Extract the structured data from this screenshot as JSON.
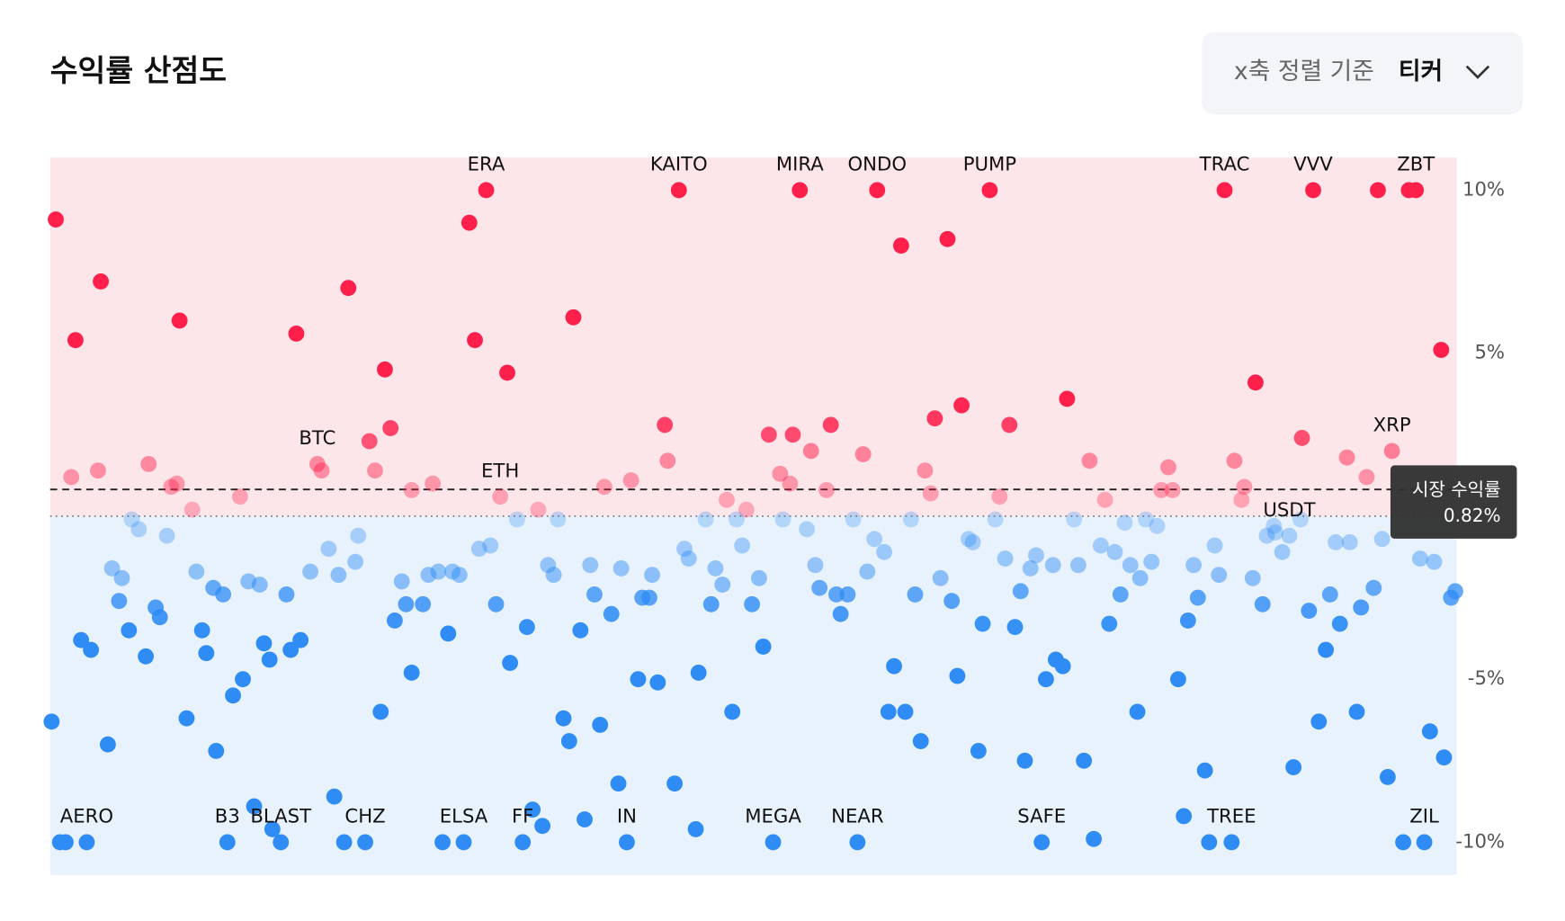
{
  "title": "수익률 산점도",
  "sort_control": {
    "label": "x축 정렬 기준",
    "value": "티커"
  },
  "chart_data": {
    "type": "scatter",
    "xlim": [
      0,
      100
    ],
    "ylim": [
      -11,
      11
    ],
    "yticks": [
      {
        "value": 10,
        "label": "10%"
      },
      {
        "value": 5,
        "label": "5%"
      },
      {
        "value": -5,
        "label": "-5%"
      },
      {
        "value": -10,
        "label": "-10%"
      }
    ],
    "market_return": {
      "label": "시장 수익률",
      "value": 0.82,
      "value_label": "0.82%"
    },
    "positive_color": "#ff1f4b",
    "negative_color": "#2f8cf5",
    "positive_area_color": "#fde6ea",
    "negative_area_color": "#e8f2fd",
    "points": [
      {
        "x": 0.4,
        "y": 9.1
      },
      {
        "x": 1.8,
        "y": 5.4
      },
      {
        "x": 3.6,
        "y": 7.2
      },
      {
        "x": 9.2,
        "y": 6.0
      },
      {
        "x": 17.5,
        "y": 5.6
      },
      {
        "x": 21.2,
        "y": 7.0
      },
      {
        "x": 23.8,
        "y": 4.5
      },
      {
        "x": 24.2,
        "y": 2.7
      },
      {
        "x": 22.7,
        "y": 2.3
      },
      {
        "x": 29.8,
        "y": 9.0
      },
      {
        "x": 30.2,
        "y": 5.4
      },
      {
        "x": 31.0,
        "y": 10,
        "label": "ERA"
      },
      {
        "x": 32.5,
        "y": 4.4
      },
      {
        "x": 37.2,
        "y": 6.1
      },
      {
        "x": 44.7,
        "y": 10,
        "label": "KAITO"
      },
      {
        "x": 43.7,
        "y": 2.8
      },
      {
        "x": 53.3,
        "y": 10,
        "label": "MIRA"
      },
      {
        "x": 58.8,
        "y": 10,
        "label": "ONDO"
      },
      {
        "x": 60.5,
        "y": 8.3
      },
      {
        "x": 63.8,
        "y": 8.5
      },
      {
        "x": 66.8,
        "y": 10,
        "label": "PUMP"
      },
      {
        "x": 62.9,
        "y": 3.0
      },
      {
        "x": 64.8,
        "y": 3.4
      },
      {
        "x": 68.2,
        "y": 2.8
      },
      {
        "x": 72.3,
        "y": 3.6
      },
      {
        "x": 83.5,
        "y": 10,
        "label": "TRAC"
      },
      {
        "x": 85.7,
        "y": 4.1
      },
      {
        "x": 89.8,
        "y": 10,
        "label": "VVV"
      },
      {
        "x": 89.0,
        "y": 2.4
      },
      {
        "x": 94.4,
        "y": 10
      },
      {
        "x": 96.6,
        "y": 10
      },
      {
        "x": 97.1,
        "y": 10,
        "label": "ZBT"
      },
      {
        "x": 98.9,
        "y": 5.1
      },
      {
        "x": 51.1,
        "y": 2.5
      },
      {
        "x": 52.8,
        "y": 2.5
      },
      {
        "x": 54.1,
        "y": 2.0
      },
      {
        "x": 55.5,
        "y": 2.8
      },
      {
        "x": 1.5,
        "y": 1.2
      },
      {
        "x": 3.4,
        "y": 1.4
      },
      {
        "x": 7.0,
        "y": 1.6
      },
      {
        "x": 8.6,
        "y": 0.9
      },
      {
        "x": 9.0,
        "y": 1.0
      },
      {
        "x": 10.1,
        "y": 0.2
      },
      {
        "x": 13.5,
        "y": 0.6
      },
      {
        "x": 19.0,
        "y": 1.6,
        "label": "BTC"
      },
      {
        "x": 19.3,
        "y": 1.4
      },
      {
        "x": 23.1,
        "y": 1.4
      },
      {
        "x": 25.7,
        "y": 0.8
      },
      {
        "x": 27.2,
        "y": 1.0
      },
      {
        "x": 32.0,
        "y": 0.6,
        "label": "ETH"
      },
      {
        "x": 34.7,
        "y": 0.2
      },
      {
        "x": 39.4,
        "y": 0.9
      },
      {
        "x": 41.3,
        "y": 1.1
      },
      {
        "x": 43.9,
        "y": 1.7
      },
      {
        "x": 48.1,
        "y": 0.5
      },
      {
        "x": 49.5,
        "y": 0.2
      },
      {
        "x": 51.9,
        "y": 1.3
      },
      {
        "x": 52.6,
        "y": 1.0
      },
      {
        "x": 55.2,
        "y": 0.8
      },
      {
        "x": 57.8,
        "y": 1.9
      },
      {
        "x": 62.2,
        "y": 1.4
      },
      {
        "x": 62.6,
        "y": 0.7
      },
      {
        "x": 67.5,
        "y": 0.6
      },
      {
        "x": 73.9,
        "y": 1.7
      },
      {
        "x": 75.0,
        "y": 0.5
      },
      {
        "x": 79.0,
        "y": 0.8
      },
      {
        "x": 79.5,
        "y": 1.5
      },
      {
        "x": 79.8,
        "y": 0.8
      },
      {
        "x": 84.2,
        "y": 1.7
      },
      {
        "x": 84.7,
        "y": 0.5
      },
      {
        "x": 84.9,
        "y": 0.9
      },
      {
        "x": 92.2,
        "y": 1.8
      },
      {
        "x": 93.6,
        "y": 1.2
      },
      {
        "x": 95.4,
        "y": 2.0,
        "label": "XRP"
      },
      {
        "x": 5.8,
        "y": -0.1
      },
      {
        "x": 6.3,
        "y": -0.4
      },
      {
        "x": 8.3,
        "y": -0.6
      },
      {
        "x": 4.4,
        "y": -1.6
      },
      {
        "x": 5.1,
        "y": -1.9
      },
      {
        "x": 10.4,
        "y": -1.7
      },
      {
        "x": 19.8,
        "y": -1.0
      },
      {
        "x": 18.5,
        "y": -1.7
      },
      {
        "x": 20.5,
        "y": -1.8
      },
      {
        "x": 21.7,
        "y": -1.4
      },
      {
        "x": 21.9,
        "y": -0.6
      },
      {
        "x": 25.0,
        "y": -2.0
      },
      {
        "x": 26.9,
        "y": -1.8
      },
      {
        "x": 27.6,
        "y": -1.7
      },
      {
        "x": 28.6,
        "y": -1.7
      },
      {
        "x": 29.1,
        "y": -1.8
      },
      {
        "x": 30.5,
        "y": -1.0
      },
      {
        "x": 31.3,
        "y": -0.9
      },
      {
        "x": 33.2,
        "y": -0.1
      },
      {
        "x": 36.1,
        "y": -0.1
      },
      {
        "x": 35.4,
        "y": -1.5
      },
      {
        "x": 35.8,
        "y": -1.8
      },
      {
        "x": 38.4,
        "y": -1.5
      },
      {
        "x": 40.6,
        "y": -1.6
      },
      {
        "x": 42.8,
        "y": -1.8
      },
      {
        "x": 45.1,
        "y": -1.0
      },
      {
        "x": 45.4,
        "y": -1.3
      },
      {
        "x": 46.6,
        "y": -0.1
      },
      {
        "x": 47.3,
        "y": -1.6
      },
      {
        "x": 48.8,
        "y": -0.1
      },
      {
        "x": 49.2,
        "y": -0.9
      },
      {
        "x": 50.4,
        "y": -1.9
      },
      {
        "x": 52.1,
        "y": -0.1
      },
      {
        "x": 53.8,
        "y": -0.4
      },
      {
        "x": 54.4,
        "y": -1.5
      },
      {
        "x": 57.1,
        "y": -0.1
      },
      {
        "x": 58.1,
        "y": -1.7
      },
      {
        "x": 58.6,
        "y": -0.7
      },
      {
        "x": 59.3,
        "y": -1.1
      },
      {
        "x": 61.2,
        "y": -0.1
      },
      {
        "x": 63.3,
        "y": -1.9
      },
      {
        "x": 65.3,
        "y": -0.7
      },
      {
        "x": 65.6,
        "y": -0.8
      },
      {
        "x": 67.2,
        "y": -0.1
      },
      {
        "x": 67.9,
        "y": -1.3
      },
      {
        "x": 69.7,
        "y": -1.6
      },
      {
        "x": 70.1,
        "y": -1.2
      },
      {
        "x": 71.3,
        "y": -1.5
      },
      {
        "x": 72.8,
        "y": -0.1
      },
      {
        "x": 73.1,
        "y": -1.5
      },
      {
        "x": 74.7,
        "y": -0.9
      },
      {
        "x": 75.7,
        "y": -1.1
      },
      {
        "x": 76.4,
        "y": -0.2
      },
      {
        "x": 76.8,
        "y": -1.5
      },
      {
        "x": 77.5,
        "y": -1.9
      },
      {
        "x": 77.9,
        "y": -0.1
      },
      {
        "x": 78.3,
        "y": -1.4
      },
      {
        "x": 78.7,
        "y": -0.3
      },
      {
        "x": 81.3,
        "y": -1.5
      },
      {
        "x": 82.8,
        "y": -0.9
      },
      {
        "x": 83.1,
        "y": -1.8
      },
      {
        "x": 85.5,
        "y": -1.9
      },
      {
        "x": 86.5,
        "y": -0.6
      },
      {
        "x": 87.0,
        "y": -0.3
      },
      {
        "x": 87.1,
        "y": -0.5
      },
      {
        "x": 88.1,
        "y": -0.6,
        "label": "USDT"
      },
      {
        "x": 87.6,
        "y": -1.1
      },
      {
        "x": 88.9,
        "y": -0.1
      },
      {
        "x": 91.4,
        "y": -0.8
      },
      {
        "x": 92.4,
        "y": -0.8
      },
      {
        "x": 94.7,
        "y": -0.7
      },
      {
        "x": 97.4,
        "y": -1.3
      },
      {
        "x": 98.4,
        "y": -1.4
      },
      {
        "x": 0.1,
        "y": -6.3
      },
      {
        "x": 2.2,
        "y": -3.8
      },
      {
        "x": 2.9,
        "y": -4.1
      },
      {
        "x": 4.1,
        "y": -7.0
      },
      {
        "x": 4.9,
        "y": -2.6
      },
      {
        "x": 5.6,
        "y": -3.5
      },
      {
        "x": 6.8,
        "y": -4.3
      },
      {
        "x": 7.5,
        "y": -2.8
      },
      {
        "x": 7.8,
        "y": -3.1
      },
      {
        "x": 9.7,
        "y": -6.2
      },
      {
        "x": 10.8,
        "y": -3.5
      },
      {
        "x": 11.1,
        "y": -4.2
      },
      {
        "x": 11.6,
        "y": -2.2
      },
      {
        "x": 11.8,
        "y": -7.2
      },
      {
        "x": 12.3,
        "y": -2.4
      },
      {
        "x": 13.0,
        "y": -5.5
      },
      {
        "x": 13.7,
        "y": -5.0
      },
      {
        "x": 14.1,
        "y": -2.0
      },
      {
        "x": 14.9,
        "y": -2.1
      },
      {
        "x": 15.2,
        "y": -3.9
      },
      {
        "x": 15.6,
        "y": -4.4
      },
      {
        "x": 16.8,
        "y": -2.4
      },
      {
        "x": 17.1,
        "y": -4.1
      },
      {
        "x": 17.8,
        "y": -3.8
      },
      {
        "x": 14.5,
        "y": -8.9
      },
      {
        "x": 15.8,
        "y": -9.6
      },
      {
        "x": 20.2,
        "y": -8.6
      },
      {
        "x": 23.5,
        "y": -6.0
      },
      {
        "x": 24.5,
        "y": -3.2
      },
      {
        "x": 25.3,
        "y": -2.7
      },
      {
        "x": 26.5,
        "y": -2.7
      },
      {
        "x": 25.7,
        "y": -4.8
      },
      {
        "x": 28.3,
        "y": -3.6
      },
      {
        "x": 31.7,
        "y": -2.7
      },
      {
        "x": 32.7,
        "y": -4.5
      },
      {
        "x": 33.9,
        "y": -3.4
      },
      {
        "x": 34.3,
        "y": -9.0
      },
      {
        "x": 35.0,
        "y": -9.5
      },
      {
        "x": 36.5,
        "y": -6.2
      },
      {
        "x": 36.9,
        "y": -6.9
      },
      {
        "x": 37.7,
        "y": -3.5
      },
      {
        "x": 38.0,
        "y": -9.3
      },
      {
        "x": 38.7,
        "y": -2.4
      },
      {
        "x": 39.1,
        "y": -6.4
      },
      {
        "x": 39.9,
        "y": -3.0
      },
      {
        "x": 40.4,
        "y": -8.2
      },
      {
        "x": 41.8,
        "y": -5.0
      },
      {
        "x": 42.1,
        "y": -2.5
      },
      {
        "x": 42.6,
        "y": -2.5
      },
      {
        "x": 43.2,
        "y": -5.1
      },
      {
        "x": 44.4,
        "y": -8.2
      },
      {
        "x": 45.9,
        "y": -9.6
      },
      {
        "x": 46.1,
        "y": -4.8
      },
      {
        "x": 47.0,
        "y": -2.7
      },
      {
        "x": 47.8,
        "y": -2.1
      },
      {
        "x": 48.5,
        "y": -6.0
      },
      {
        "x": 49.9,
        "y": -2.7
      },
      {
        "x": 50.7,
        "y": -4.0
      },
      {
        "x": 54.7,
        "y": -2.2
      },
      {
        "x": 55.9,
        "y": -2.4
      },
      {
        "x": 56.7,
        "y": -2.4
      },
      {
        "x": 56.2,
        "y": -3.0
      },
      {
        "x": 59.6,
        "y": -6.0
      },
      {
        "x": 60.0,
        "y": -4.6
      },
      {
        "x": 60.8,
        "y": -6.0
      },
      {
        "x": 61.5,
        "y": -2.4
      },
      {
        "x": 61.9,
        "y": -6.9
      },
      {
        "x": 64.1,
        "y": -2.6
      },
      {
        "x": 64.5,
        "y": -4.9
      },
      {
        "x": 66.0,
        "y": -7.2
      },
      {
        "x": 66.3,
        "y": -3.3
      },
      {
        "x": 68.6,
        "y": -3.4
      },
      {
        "x": 69.0,
        "y": -2.3
      },
      {
        "x": 69.3,
        "y": -7.5
      },
      {
        "x": 70.8,
        "y": -5.0
      },
      {
        "x": 71.5,
        "y": -4.4
      },
      {
        "x": 72.0,
        "y": -4.6
      },
      {
        "x": 73.5,
        "y": -7.5
      },
      {
        "x": 74.2,
        "y": -9.9
      },
      {
        "x": 75.3,
        "y": -3.3
      },
      {
        "x": 76.1,
        "y": -2.4
      },
      {
        "x": 77.3,
        "y": -6.0
      },
      {
        "x": 80.2,
        "y": -5.0
      },
      {
        "x": 80.6,
        "y": -9.2
      },
      {
        "x": 80.9,
        "y": -3.2
      },
      {
        "x": 81.6,
        "y": -2.5
      },
      {
        "x": 82.1,
        "y": -7.8
      },
      {
        "x": 86.2,
        "y": -2.7
      },
      {
        "x": 88.4,
        "y": -7.7
      },
      {
        "x": 89.5,
        "y": -2.9
      },
      {
        "x": 90.2,
        "y": -6.3
      },
      {
        "x": 90.7,
        "y": -4.1
      },
      {
        "x": 91.0,
        "y": -2.4
      },
      {
        "x": 91.7,
        "y": -3.3
      },
      {
        "x": 92.9,
        "y": -6.0
      },
      {
        "x": 93.2,
        "y": -2.8
      },
      {
        "x": 94.1,
        "y": -2.2
      },
      {
        "x": 95.1,
        "y": -8.0
      },
      {
        "x": 98.1,
        "y": -6.6
      },
      {
        "x": 99.1,
        "y": -7.4
      },
      {
        "x": 99.6,
        "y": -2.5
      },
      {
        "x": 99.9,
        "y": -2.3
      },
      {
        "x": 0.7,
        "y": -10
      },
      {
        "x": 1.1,
        "y": -10
      },
      {
        "x": 2.6,
        "y": -10,
        "label": "AERO"
      },
      {
        "x": 12.6,
        "y": -10,
        "label": "B3"
      },
      {
        "x": 16.4,
        "y": -10,
        "label": "BLAST"
      },
      {
        "x": 20.9,
        "y": -10
      },
      {
        "x": 22.4,
        "y": -10,
        "label": "CHZ"
      },
      {
        "x": 27.9,
        "y": -10
      },
      {
        "x": 29.4,
        "y": -10,
        "label": "ELSA"
      },
      {
        "x": 33.6,
        "y": -10,
        "label": "FF"
      },
      {
        "x": 41.0,
        "y": -10,
        "label": "IN"
      },
      {
        "x": 51.4,
        "y": -10,
        "label": "MEGA"
      },
      {
        "x": 57.4,
        "y": -10,
        "label": "NEAR"
      },
      {
        "x": 70.5,
        "y": -10,
        "label": "SAFE"
      },
      {
        "x": 82.4,
        "y": -10
      },
      {
        "x": 84.0,
        "y": -10,
        "label": "TREE"
      },
      {
        "x": 96.2,
        "y": -10
      },
      {
        "x": 97.7,
        "y": -10,
        "label": "ZIL"
      }
    ]
  }
}
